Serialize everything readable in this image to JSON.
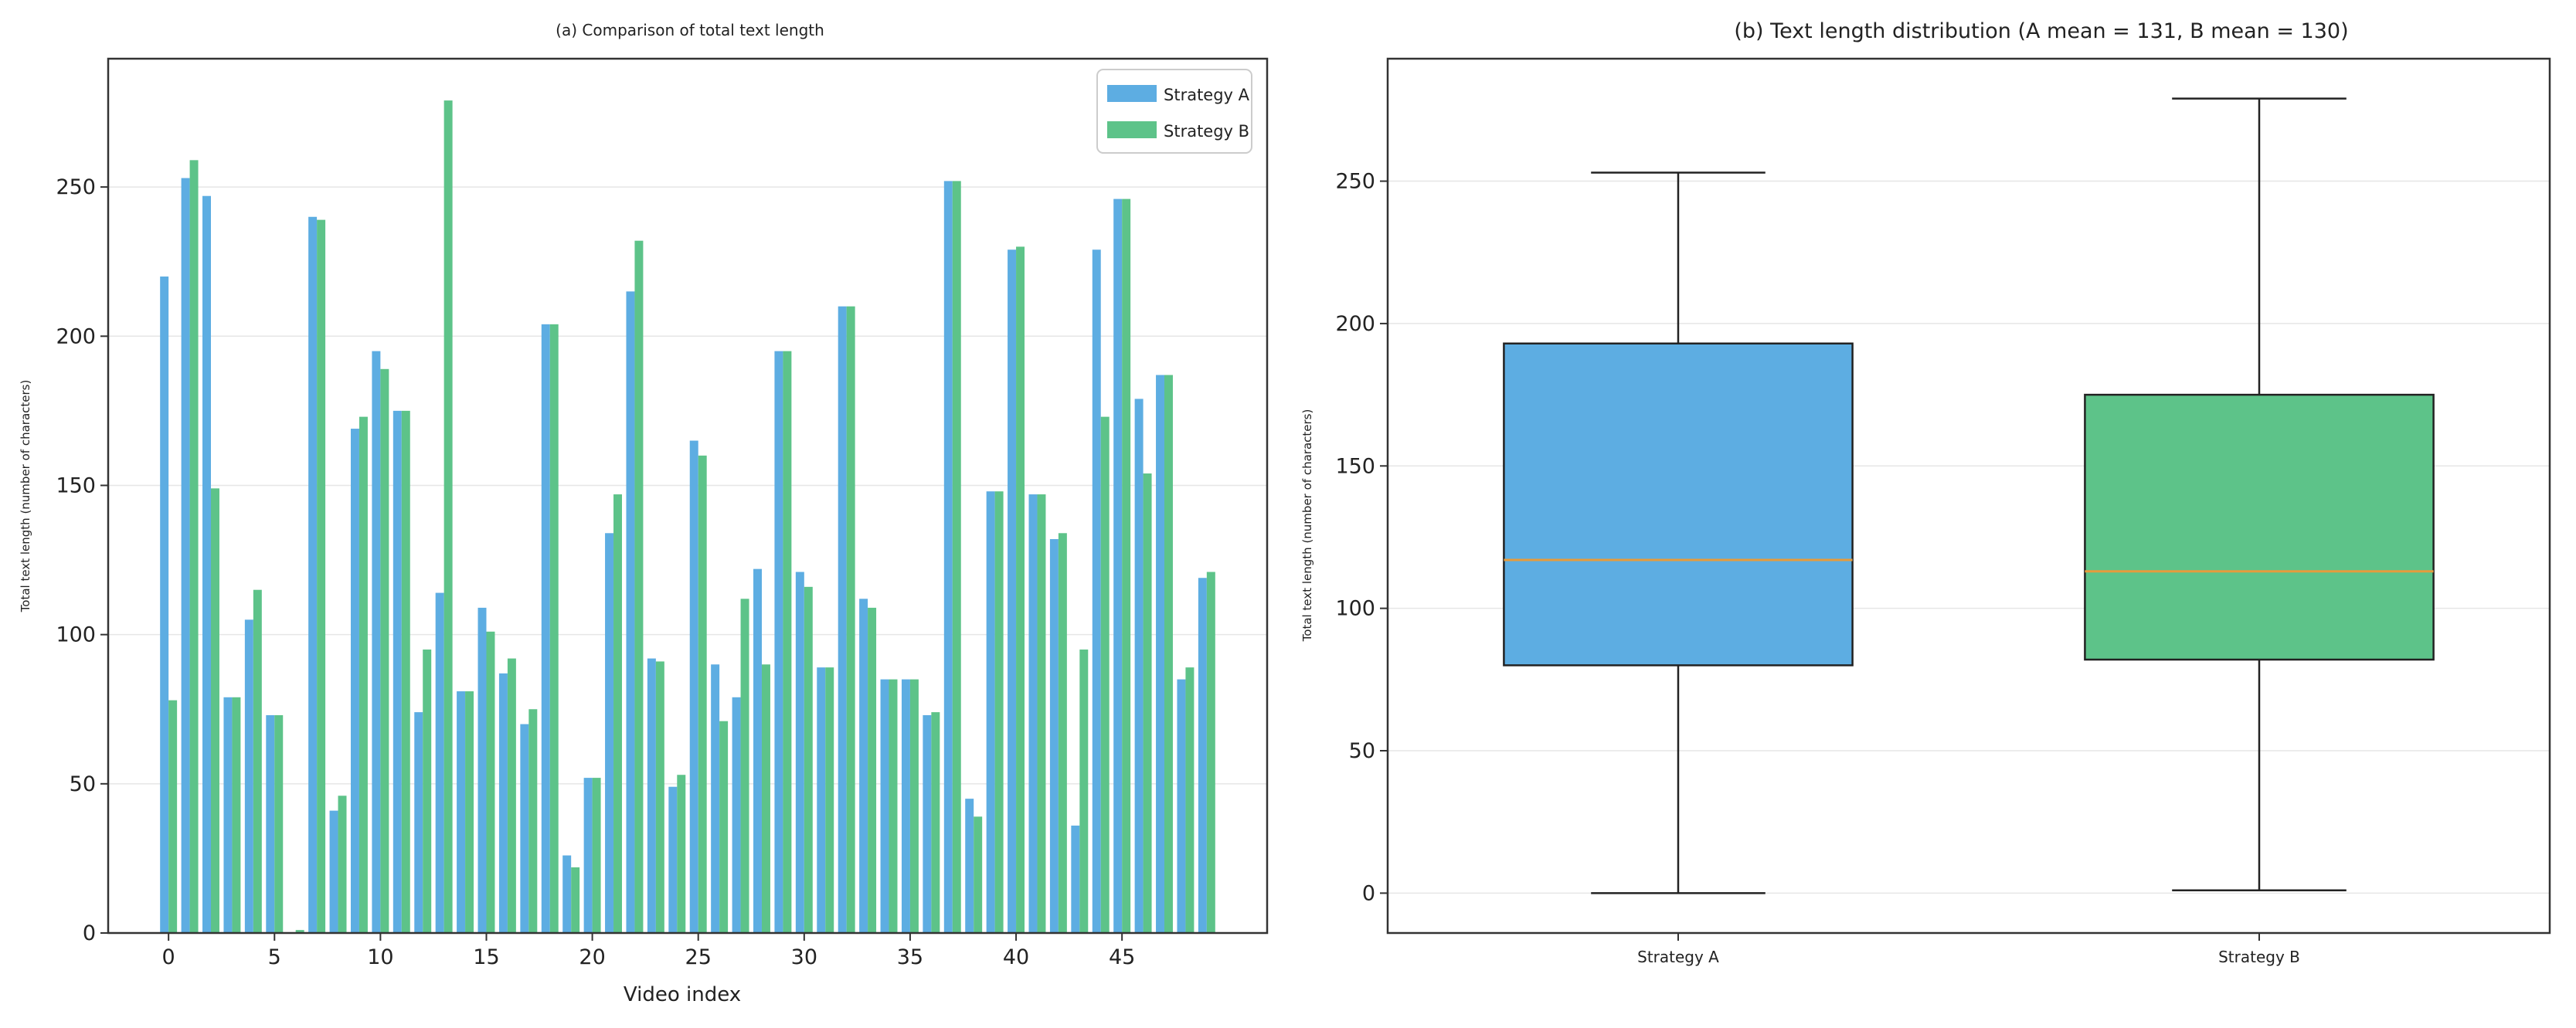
{
  "chart_data": [
    {
      "type": "bar",
      "title": "(a) Comparison of total text length",
      "xlabel": "Video index",
      "ylabel": "Total text length (number of characters)",
      "ylim": [
        0,
        293
      ],
      "xlim": [
        -2.85,
        51.85
      ],
      "xticks": [
        0,
        5,
        10,
        15,
        20,
        25,
        30,
        35,
        40,
        45
      ],
      "yticks": [
        0,
        50,
        100,
        150,
        200,
        250
      ],
      "grid": "y",
      "legend": "top-right",
      "x": [
        0,
        1,
        2,
        3,
        4,
        5,
        6,
        7,
        8,
        9,
        10,
        11,
        12,
        13,
        14,
        15,
        16,
        17,
        18,
        19,
        20,
        21,
        22,
        23,
        24,
        25,
        26,
        27,
        28,
        29,
        30,
        31,
        32,
        33,
        34,
        35,
        36,
        37,
        38,
        39,
        40,
        41,
        42,
        43,
        44,
        45,
        46,
        47,
        48,
        49
      ],
      "series": [
        {
          "name": "Strategy A",
          "color": "#5DADE2",
          "values": [
            220,
            253,
            247,
            79,
            105,
            73,
            0,
            240,
            41,
            169,
            195,
            175,
            74,
            114,
            81,
            109,
            87,
            70,
            204,
            26,
            52,
            134,
            215,
            92,
            49,
            165,
            90,
            79,
            122,
            195,
            121,
            89,
            210,
            112,
            85,
            85,
            73,
            252,
            45,
            148,
            229,
            147,
            132,
            36,
            229,
            246,
            179,
            187,
            85,
            119
          ]
        },
        {
          "name": "Strategy B",
          "color": "#5DC389",
          "values": [
            78,
            259,
            149,
            79,
            115,
            73,
            1,
            239,
            46,
            173,
            189,
            175,
            95,
            279,
            81,
            101,
            92,
            75,
            204,
            22,
            52,
            147,
            232,
            91,
            53,
            160,
            71,
            112,
            90,
            195,
            116,
            89,
            210,
            109,
            85,
            85,
            74,
            252,
            39,
            148,
            230,
            147,
            134,
            95,
            173,
            246,
            154,
            187,
            89,
            121
          ]
        }
      ]
    },
    {
      "type": "box",
      "title": "(b) Text length distribution (A mean = 131, B mean = 130)",
      "xlabel": "",
      "ylabel": "Total text length (number of characters)",
      "ylim": [
        -14,
        293
      ],
      "yticks": [
        0,
        50,
        100,
        150,
        200,
        250
      ],
      "grid": "y",
      "categories": [
        "Strategy A",
        "Strategy B"
      ],
      "boxes": [
        {
          "name": "Strategy A",
          "color": "#5DADE2",
          "whisker_low": 0,
          "q1": 80,
          "median": 117,
          "q3": 193,
          "whisker_high": 253
        },
        {
          "name": "Strategy B",
          "color": "#5DC389",
          "whisker_low": 1,
          "q1": 82,
          "median": 113,
          "q3": 175,
          "whisker_high": 279
        }
      ],
      "median_color": "#E69B3C"
    }
  ]
}
